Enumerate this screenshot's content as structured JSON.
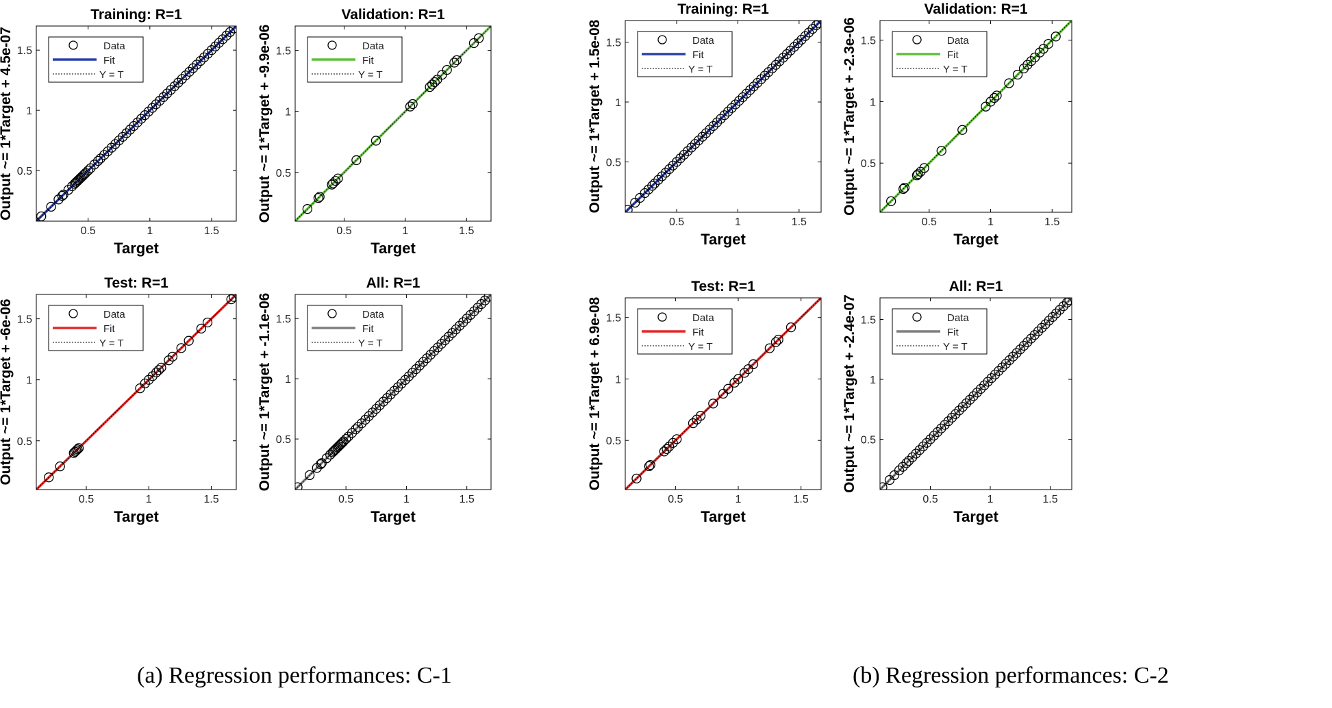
{
  "captions": {
    "a": "(a) Regression performances: C-1",
    "b": "(b) Regression performances: C-2"
  },
  "legend_labels": [
    "Data",
    "Fit",
    "Y = T"
  ],
  "chart_data": [
    {
      "group": "C-1",
      "type": "scatter",
      "title": "Training: R=1",
      "xlabel": "Target",
      "ylabel": "Output ~= 1*Target + 4.5e-07",
      "xlim": [
        0.08,
        1.7
      ],
      "ylim": [
        0.08,
        1.7
      ],
      "xticks": [
        0.5,
        1,
        1.5
      ],
      "yticks": [
        0.5,
        1,
        1.5
      ],
      "fit_color": "#2b3fa8",
      "fit_line": {
        "slope": 1,
        "intercept": 4.5e-07
      },
      "points": [
        0.12,
        0.2,
        0.26,
        0.29,
        0.3,
        0.34,
        0.37,
        0.39,
        0.4,
        0.41,
        0.42,
        0.43,
        0.44,
        0.45,
        0.46,
        0.47,
        0.48,
        0.5,
        0.52,
        0.55,
        0.58,
        0.6,
        0.63,
        0.66,
        0.69,
        0.72,
        0.75,
        0.78,
        0.81,
        0.84,
        0.87,
        0.9,
        0.93,
        0.96,
        0.99,
        1.02,
        1.05,
        1.08,
        1.11,
        1.14,
        1.17,
        1.2,
        1.23,
        1.26,
        1.29,
        1.32,
        1.35,
        1.38,
        1.41,
        1.44,
        1.47,
        1.5,
        1.53,
        1.56,
        1.59,
        1.62,
        1.65,
        1.68
      ]
    },
    {
      "group": "C-1",
      "type": "scatter",
      "title": "Validation: R=1",
      "xlabel": "Target",
      "ylabel": "Output ~= 1*Target + -9.9e-06",
      "xlim": [
        0.1,
        1.7
      ],
      "ylim": [
        0.1,
        1.7
      ],
      "xticks": [
        0.5,
        1,
        1.5
      ],
      "yticks": [
        0.5,
        1,
        1.5
      ],
      "fit_color": "#5fbf3a",
      "fit_line": {
        "slope": 1,
        "intercept": -9.9e-06
      },
      "points": [
        0.2,
        0.29,
        0.3,
        0.4,
        0.41,
        0.43,
        0.45,
        0.6,
        0.76,
        1.04,
        1.06,
        1.2,
        1.22,
        1.24,
        1.26,
        1.3,
        1.34,
        1.4,
        1.42,
        1.56,
        1.6
      ]
    },
    {
      "group": "C-1",
      "type": "scatter",
      "title": "Test: R=1",
      "xlabel": "Target",
      "ylabel": "Output ~= 1*Target + -6e-06",
      "xlim": [
        0.1,
        1.7
      ],
      "ylim": [
        0.1,
        1.7
      ],
      "xticks": [
        0.5,
        1,
        1.5
      ],
      "yticks": [
        0.5,
        1,
        1.5
      ],
      "fit_color": "#e02828",
      "fit_line": {
        "slope": 1,
        "intercept": -6e-06
      },
      "points": [
        0.2,
        0.29,
        0.4,
        0.41,
        0.42,
        0.43,
        0.44,
        0.93,
        0.97,
        1.0,
        1.03,
        1.06,
        1.08,
        1.1,
        1.16,
        1.19,
        1.26,
        1.32,
        1.42,
        1.47,
        1.66,
        1.68
      ]
    },
    {
      "group": "C-1",
      "type": "scatter",
      "title": "All: R=1",
      "xlabel": "Target",
      "ylabel": "Output ~= 1*Target + -1.1e-06",
      "xlim": [
        0.08,
        1.7
      ],
      "ylim": [
        0.08,
        1.7
      ],
      "xticks": [
        0.5,
        1,
        1.5
      ],
      "yticks": [
        0.5,
        1,
        1.5
      ],
      "fit_color": "#7f7f7f",
      "fit_line": {
        "slope": 1,
        "intercept": -1.1e-06
      },
      "points": [
        0.1,
        0.2,
        0.26,
        0.29,
        0.3,
        0.34,
        0.37,
        0.39,
        0.4,
        0.41,
        0.42,
        0.43,
        0.44,
        0.45,
        0.46,
        0.47,
        0.48,
        0.5,
        0.52,
        0.55,
        0.58,
        0.6,
        0.63,
        0.66,
        0.69,
        0.72,
        0.75,
        0.78,
        0.81,
        0.84,
        0.87,
        0.9,
        0.93,
        0.96,
        0.99,
        1.02,
        1.05,
        1.08,
        1.11,
        1.14,
        1.17,
        1.2,
        1.23,
        1.26,
        1.29,
        1.32,
        1.35,
        1.38,
        1.41,
        1.44,
        1.47,
        1.5,
        1.53,
        1.56,
        1.59,
        1.62,
        1.65,
        1.68
      ]
    },
    {
      "group": "C-2",
      "type": "scatter",
      "title": "Training: R=1",
      "xlabel": "Target",
      "ylabel": "Output ~= 1*Target + 1.5e-08",
      "xlim": [
        0.08,
        1.68
      ],
      "ylim": [
        0.08,
        1.68
      ],
      "xticks": [
        0.5,
        1,
        1.5
      ],
      "yticks": [
        0.5,
        1,
        1.5
      ],
      "fit_color": "#2b3fa8",
      "fit_line": {
        "slope": 1,
        "intercept": 1.5e-08
      },
      "points": [
        0.1,
        0.16,
        0.2,
        0.24,
        0.27,
        0.3,
        0.32,
        0.35,
        0.38,
        0.41,
        0.44,
        0.47,
        0.5,
        0.53,
        0.56,
        0.59,
        0.62,
        0.65,
        0.68,
        0.71,
        0.74,
        0.77,
        0.8,
        0.83,
        0.86,
        0.89,
        0.92,
        0.95,
        0.98,
        1.01,
        1.04,
        1.07,
        1.1,
        1.13,
        1.16,
        1.19,
        1.22,
        1.25,
        1.28,
        1.31,
        1.34,
        1.37,
        1.4,
        1.43,
        1.46,
        1.49,
        1.52,
        1.55,
        1.58,
        1.61,
        1.64,
        1.66
      ]
    },
    {
      "group": "C-2",
      "type": "scatter",
      "title": "Validation: R=1",
      "xlabel": "Target",
      "ylabel": "Output ~= 1*Target + -2.3e-06",
      "xlim": [
        0.1,
        1.66
      ],
      "ylim": [
        0.1,
        1.66
      ],
      "xticks": [
        0.5,
        1,
        1.5
      ],
      "yticks": [
        0.5,
        1,
        1.5
      ],
      "fit_color": "#5fbf3a",
      "fit_line": {
        "slope": 1,
        "intercept": -2.3e-06
      },
      "points": [
        0.19,
        0.29,
        0.3,
        0.4,
        0.41,
        0.43,
        0.46,
        0.6,
        0.77,
        0.96,
        1.0,
        1.03,
        1.05,
        1.15,
        1.22,
        1.27,
        1.3,
        1.33,
        1.36,
        1.4,
        1.43,
        1.47,
        1.53
      ]
    },
    {
      "group": "C-2",
      "type": "scatter",
      "title": "Test: R=1",
      "xlabel": "Target",
      "ylabel": "Output ~= 1*Target + 6.9e-08",
      "xlim": [
        0.1,
        1.66
      ],
      "ylim": [
        0.1,
        1.66
      ],
      "xticks": [
        0.5,
        1,
        1.5
      ],
      "yticks": [
        0.5,
        1,
        1.5
      ],
      "fit_color": "#e02828",
      "fit_line": {
        "slope": 1,
        "intercept": 6.9e-08
      },
      "points": [
        0.19,
        0.29,
        0.3,
        0.41,
        0.43,
        0.45,
        0.48,
        0.51,
        0.64,
        0.67,
        0.7,
        0.8,
        0.88,
        0.92,
        0.97,
        1.0,
        1.05,
        1.08,
        1.12,
        1.25,
        1.3,
        1.32,
        1.42
      ]
    },
    {
      "group": "C-2",
      "type": "scatter",
      "title": "All: R=1",
      "xlabel": "Target",
      "ylabel": "Output ~= 1*Target + -2.4e-07",
      "xlim": [
        0.08,
        1.68
      ],
      "ylim": [
        0.08,
        1.68
      ],
      "xticks": [
        0.5,
        1,
        1.5
      ],
      "yticks": [
        0.5,
        1,
        1.5
      ],
      "fit_color": "#7f7f7f",
      "fit_line": {
        "slope": 1,
        "intercept": -2.4e-07
      },
      "points": [
        0.1,
        0.16,
        0.2,
        0.24,
        0.27,
        0.3,
        0.32,
        0.35,
        0.38,
        0.41,
        0.44,
        0.47,
        0.5,
        0.53,
        0.56,
        0.59,
        0.62,
        0.65,
        0.68,
        0.71,
        0.74,
        0.77,
        0.8,
        0.83,
        0.86,
        0.89,
        0.92,
        0.95,
        0.98,
        1.01,
        1.04,
        1.07,
        1.1,
        1.13,
        1.16,
        1.19,
        1.22,
        1.25,
        1.28,
        1.31,
        1.34,
        1.37,
        1.4,
        1.43,
        1.46,
        1.49,
        1.52,
        1.55,
        1.58,
        1.61,
        1.64,
        1.66
      ]
    }
  ]
}
